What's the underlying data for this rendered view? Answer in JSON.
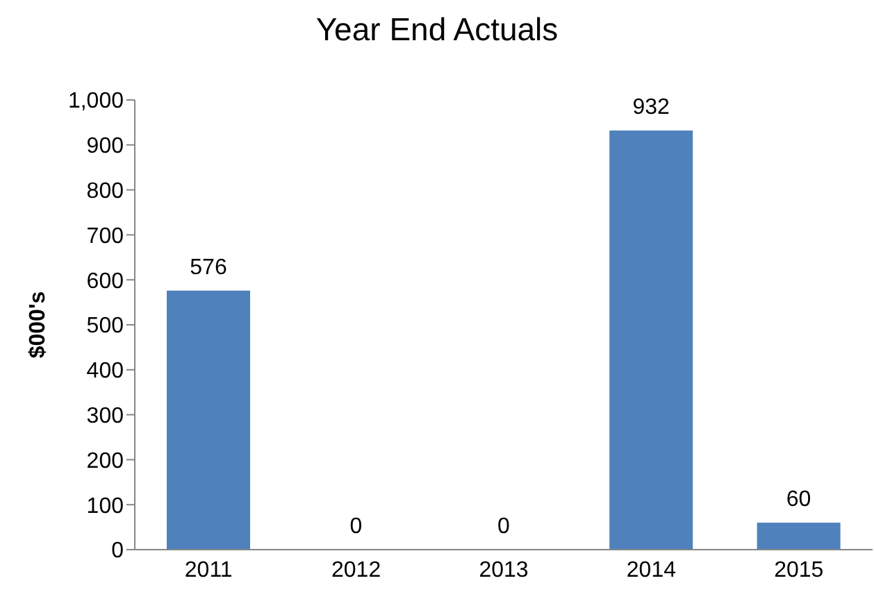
{
  "chart_data": {
    "type": "bar",
    "title": "Year End Actuals",
    "ylabel": "$000's",
    "categories": [
      "2011",
      "2012",
      "2013",
      "2014",
      "2015"
    ],
    "values": [
      576,
      0,
      0,
      932,
      60
    ],
    "color": "#4f81bd",
    "ylim": [
      0,
      1000
    ],
    "yticks": [
      0,
      100,
      200,
      300,
      400,
      500,
      600,
      700,
      800,
      900,
      {
        "value": 1000,
        "label": "1,000"
      }
    ],
    "data_labels": true
  }
}
